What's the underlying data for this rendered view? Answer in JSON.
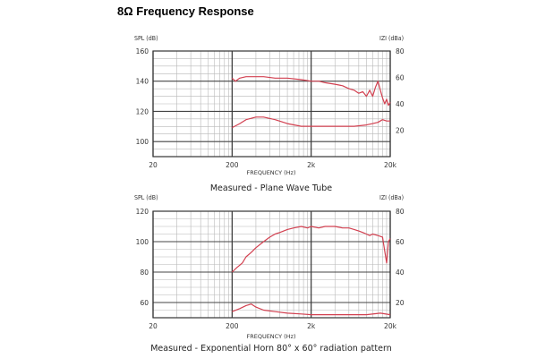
{
  "page": {
    "title": "8Ω Frequency Response"
  },
  "charts": [
    {
      "left_axis_label": "SPL (dB)",
      "right_axis_label": "IZI (dBa)",
      "x_axis_label": "FREQUENCY (Hz)",
      "caption": "Measured - Plane Wave Tube"
    },
    {
      "left_axis_label": "SPL (dB)",
      "right_axis_label": "IZI (dBa)",
      "x_axis_label": "FREQUENCY (Hz)",
      "caption": "Measured - Exponential Horn 80° x 60° radiation pattern"
    }
  ],
  "chart_data": [
    {
      "type": "line",
      "title": "",
      "xlabel": "FREQUENCY (Hz)",
      "ylabel": "SPL (dB)",
      "y2label": "IZI (dBa)",
      "xscale": "log",
      "xlim": [
        20,
        20000
      ],
      "xticks": [
        "20",
        "200",
        "2k",
        "20k"
      ],
      "ylim": [
        90,
        160
      ],
      "yticks": [
        100,
        120,
        140,
        160
      ],
      "y2lim": [
        0,
        80
      ],
      "y2ticks": [
        20,
        40,
        60,
        80
      ],
      "grid": true,
      "series": [
        {
          "axis": "left",
          "color": "#d24050",
          "x": [
            200,
            220,
            250,
            300,
            400,
            500,
            700,
            1000,
            1500,
            2000,
            2500,
            3000,
            4000,
            5000,
            6000,
            7000,
            8000,
            9000,
            10000,
            11000,
            12000,
            13000,
            14000,
            15000,
            16000,
            17000,
            18000,
            19000,
            20000
          ],
          "y": [
            142,
            140,
            142,
            143,
            143,
            143,
            142,
            142,
            141,
            140,
            140,
            139,
            138,
            137,
            135,
            134,
            132,
            133,
            130,
            134,
            130,
            136,
            140,
            134,
            129,
            125,
            128,
            124,
            126
          ]
        },
        {
          "axis": "right",
          "color": "#d24050",
          "x": [
            200,
            250,
            300,
            400,
            500,
            700,
            1000,
            1500,
            2000,
            3000,
            5000,
            7000,
            10000,
            12000,
            14000,
            16000,
            18000,
            20000
          ],
          "y": [
            22,
            25,
            28,
            30,
            30,
            28,
            25,
            23,
            23,
            23,
            23,
            23,
            24,
            25,
            26,
            28,
            27,
            27
          ]
        }
      ]
    },
    {
      "type": "line",
      "title": "",
      "xlabel": "FREQUENCY (Hz)",
      "ylabel": "SPL (dB)",
      "y2label": "IZI (dBa)",
      "xscale": "log",
      "xlim": [
        20,
        20000
      ],
      "xticks": [
        "20",
        "200",
        "2k",
        "20k"
      ],
      "ylim": [
        50,
        120
      ],
      "yticks": [
        60,
        80,
        100,
        120
      ],
      "y2lim": [
        10,
        80
      ],
      "y2ticks": [
        20,
        40,
        60,
        80
      ],
      "grid": true,
      "series": [
        {
          "axis": "left",
          "color": "#d24050",
          "x": [
            200,
            230,
            270,
            300,
            350,
            400,
            500,
            600,
            700,
            800,
            1000,
            1200,
            1500,
            1800,
            2000,
            2500,
            3000,
            4000,
            5000,
            6000,
            7000,
            8000,
            9000,
            10000,
            11000,
            12000,
            14000,
            16000,
            17000,
            18000,
            19000,
            20000
          ],
          "y": [
            80,
            83,
            86,
            90,
            93,
            96,
            100,
            103,
            105,
            106,
            108,
            109,
            110,
            109,
            110,
            109,
            110,
            110,
            109,
            109,
            108,
            107,
            106,
            105,
            104,
            105,
            104,
            103,
            94,
            86,
            100,
            102
          ]
        },
        {
          "axis": "right",
          "color": "#d24050",
          "x": [
            200,
            250,
            300,
            350,
            400,
            500,
            700,
            1000,
            1500,
            2000,
            3000,
            5000,
            10000,
            15000,
            20000
          ],
          "y": [
            14,
            16,
            18,
            19,
            17,
            15,
            14,
            13,
            12.5,
            12,
            12,
            12,
            12,
            13,
            12
          ]
        }
      ]
    }
  ]
}
